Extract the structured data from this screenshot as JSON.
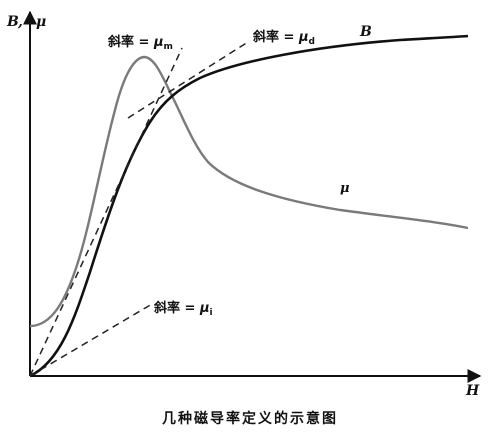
{
  "axes": {
    "y_label_B": "B",
    "y_label_sep": ",",
    "y_label_mu": "μ",
    "x_label": "H"
  },
  "curves": {
    "B_label": "B",
    "mu_label": "μ"
  },
  "slopes": {
    "prefix": "斜率 = ",
    "mu_symbol": "μ",
    "m": {
      "subscript": "m"
    },
    "d": {
      "subscript": "d"
    },
    "i": {
      "subscript": "i"
    }
  },
  "caption": "几种磁导率定义的示意图",
  "colors": {
    "B_curve": "#111111",
    "mu_curve": "#7a7a7a",
    "axes": "#111111",
    "dashed_lines": "#222222"
  }
}
